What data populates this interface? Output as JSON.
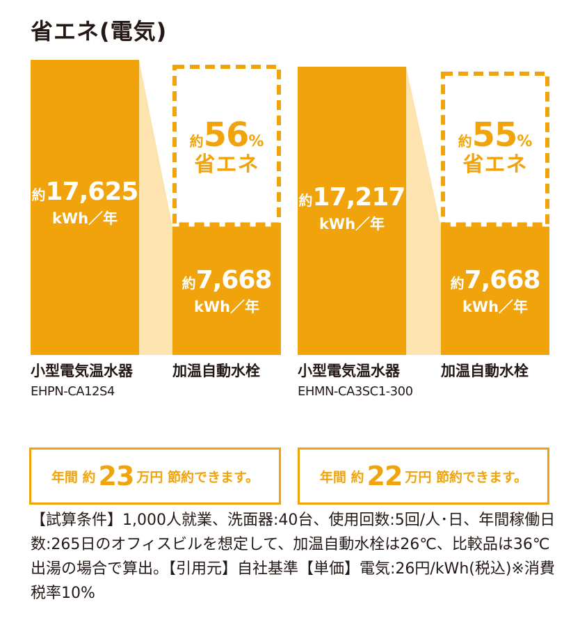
{
  "title": "省エネ(電気)",
  "chart_data": [
    {
      "type": "bar",
      "categories": [
        {
          "name": "小型電気温水器",
          "model": "EHPN-CA12S4"
        },
        {
          "name": "加温自動水栓",
          "model": ""
        }
      ],
      "values": [
        17625,
        7668
      ],
      "value_labels": [
        {
          "prefix": "約",
          "number": "17,625",
          "unit": "kWh／年"
        },
        {
          "prefix": "約",
          "number": "7,668",
          "unit": "kWh／年"
        }
      ],
      "reduction": {
        "prefix": "約",
        "number": "56",
        "percent": "%",
        "label": "省エネ"
      },
      "savings": {
        "prefix": "年間 約",
        "amount": "23",
        "suffix": "万円 節約できます。"
      }
    },
    {
      "type": "bar",
      "categories": [
        {
          "name": "小型電気温水器",
          "model": "EHMN-CA3SC1-300"
        },
        {
          "name": "加温自動水栓",
          "model": ""
        }
      ],
      "values": [
        17217,
        7668
      ],
      "value_labels": [
        {
          "prefix": "約",
          "number": "17,217",
          "unit": "kWh／年"
        },
        {
          "prefix": "約",
          "number": "7,668",
          "unit": "kWh／年"
        }
      ],
      "reduction": {
        "prefix": "約",
        "number": "55",
        "percent": "%",
        "label": "省エネ"
      },
      "savings": {
        "prefix": "年間 約",
        "amount": "22",
        "suffix": "万円 節約できます。"
      }
    }
  ],
  "conditions": "【試算条件】1,000人就業、洗面器:40台、使用回数:5回/人･日、年間稼働日数:265日のオフィスビルを想定して、加温自動水栓は26℃、比較品は36℃出湯の場合で算出。【引用元】自社基準【単価】電気:26円/kWh(税込)※消費税率10%",
  "colors": {
    "bar": "#f0a30a",
    "connector": "#fde3b0",
    "dash": "#f0a30a",
    "text": "#231815"
  }
}
